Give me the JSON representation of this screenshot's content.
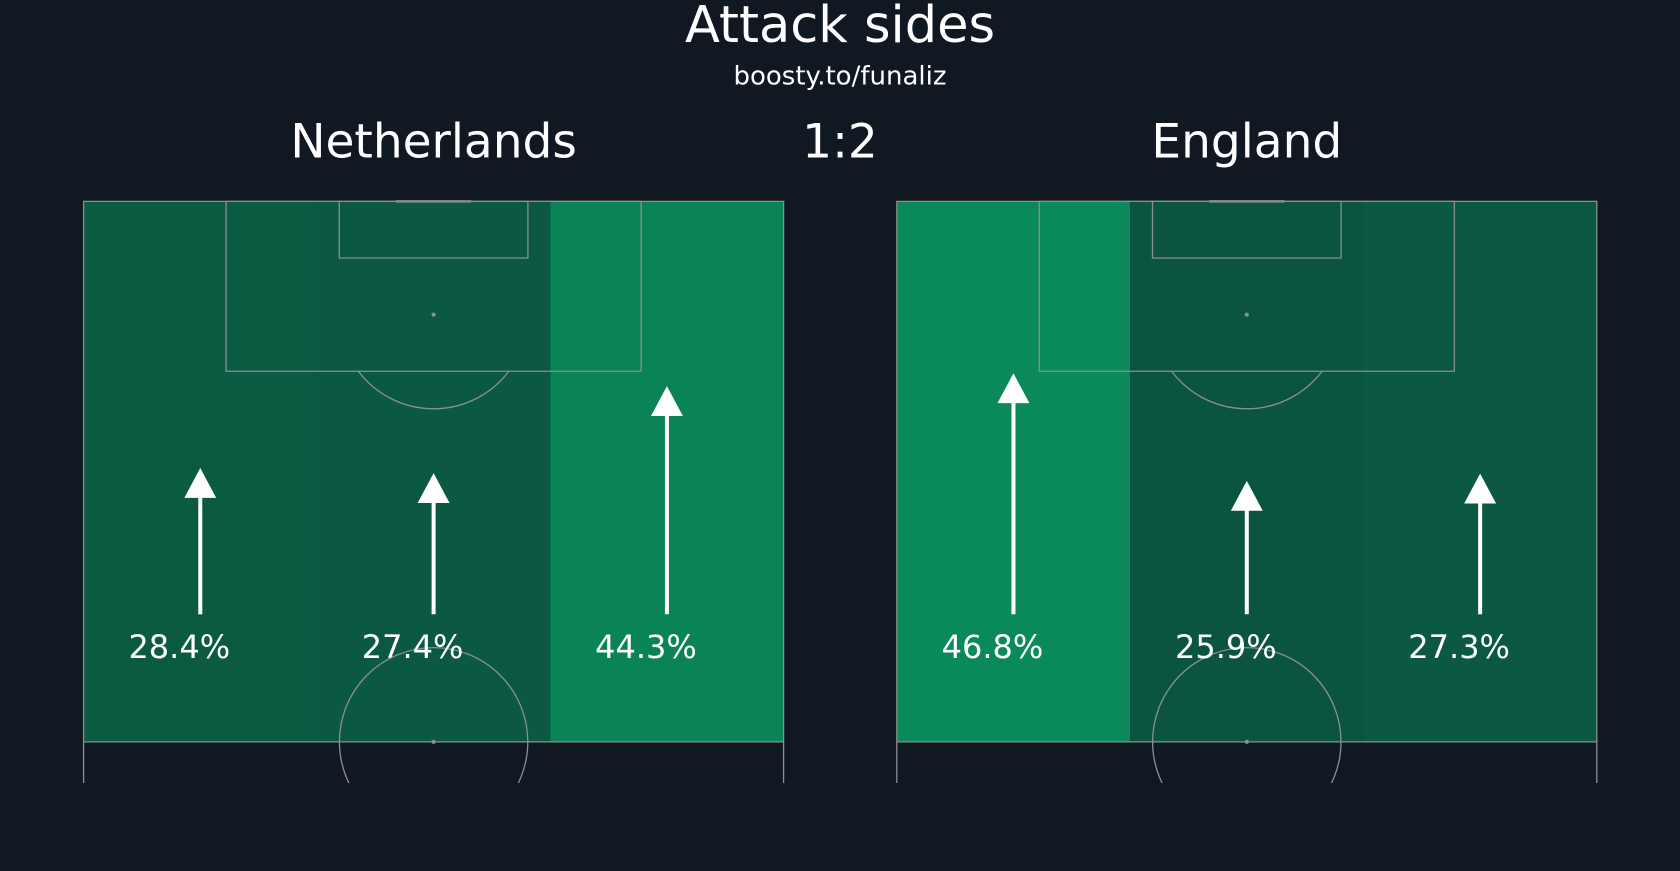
{
  "title": "Attack sides",
  "subtitle": "boosty.to/funaliz",
  "score": "1:2",
  "cmap": [
    "#0b5540",
    "#0a8a5a"
  ],
  "chart_data": [
    {
      "type": "arrows",
      "title": "Netherlands",
      "values": [
        28.4,
        27.4,
        44.3
      ],
      "value_labels": [
        "28.4%",
        "27.4%",
        "44.3%"
      ]
    },
    {
      "type": "arrows",
      "title": "England",
      "values": [
        46.8,
        25.9,
        27.3
      ],
      "value_labels": [
        "46.8%",
        "25.9%",
        "27.3%"
      ]
    }
  ]
}
